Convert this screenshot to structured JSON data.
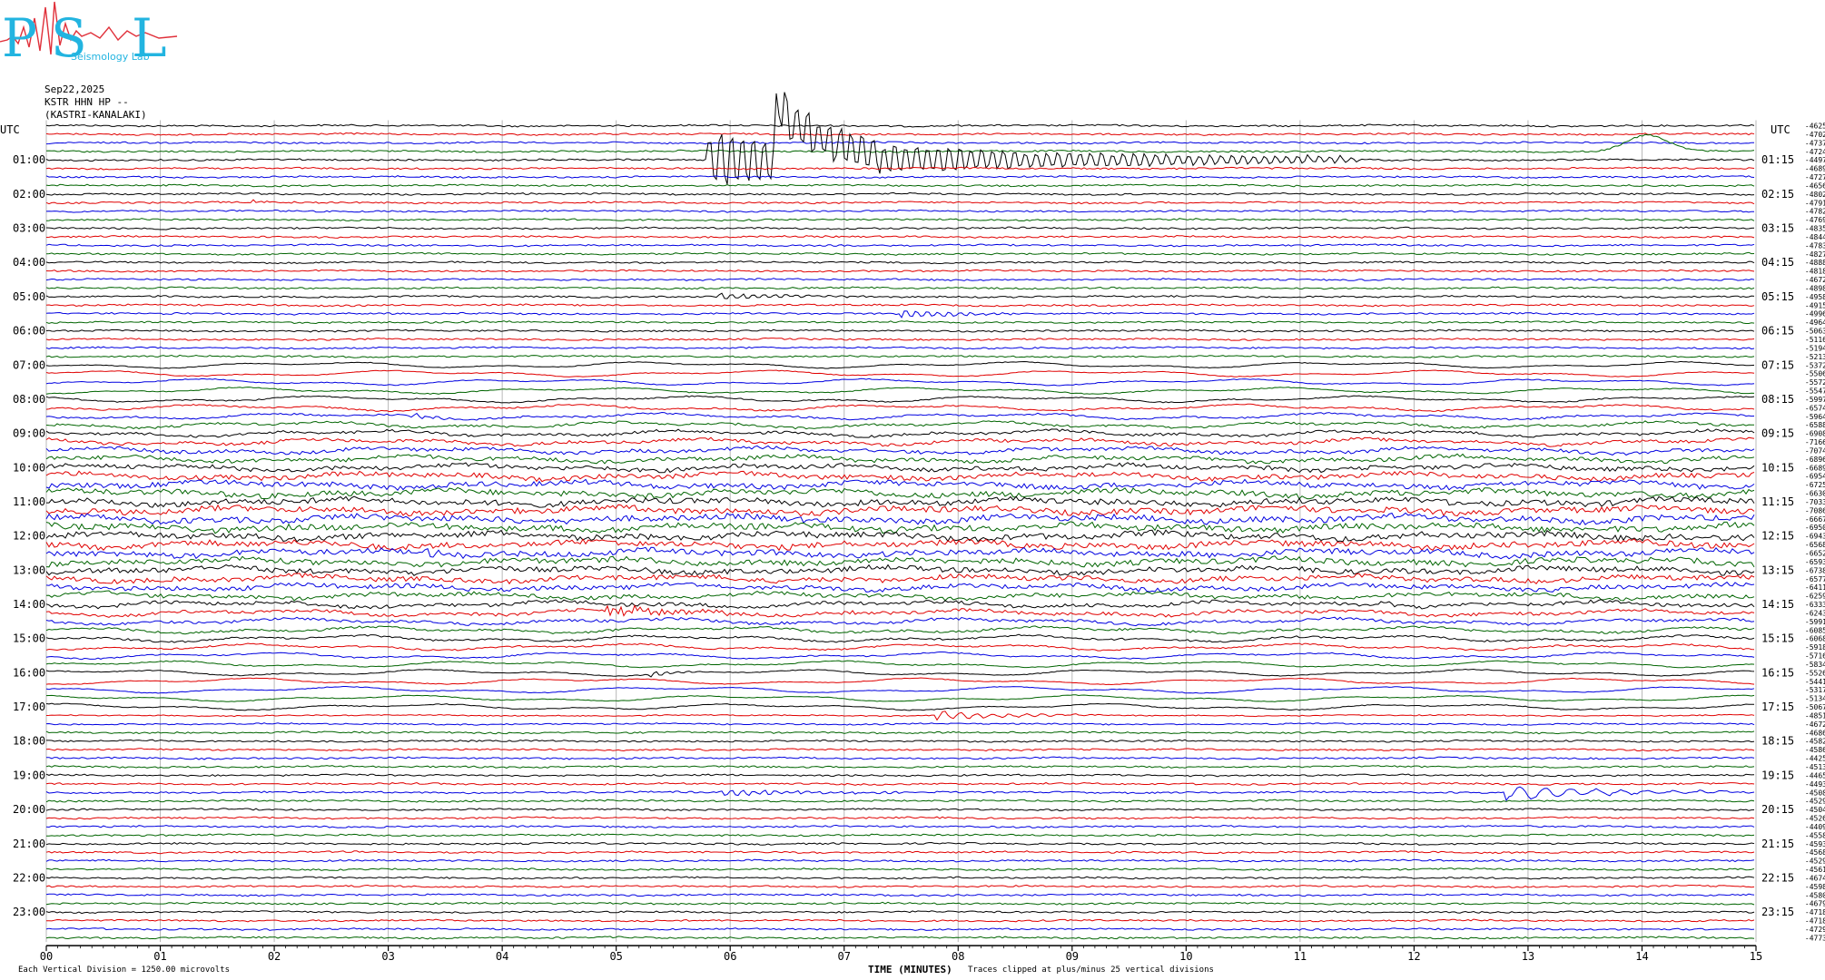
{
  "logo": {
    "letters": "PSL",
    "small_text": "Seismology Lab",
    "colors": {
      "blue": "#22b4e0",
      "red": "#e0303a"
    }
  },
  "header": {
    "date": "Sep22,2025",
    "station": "KSTR HHN HP --",
    "location": "(KASTRI-KANALAKI)"
  },
  "utc_label": "UTC",
  "left_hours": [
    "01:00",
    "02:00",
    "03:00",
    "04:00",
    "05:00",
    "06:00",
    "07:00",
    "08:00",
    "09:00",
    "10:00",
    "11:00",
    "12:00",
    "13:00",
    "14:00",
    "15:00",
    "16:00",
    "17:00",
    "18:00",
    "19:00",
    "20:00",
    "21:00",
    "22:00",
    "23:00"
  ],
  "right_hours": [
    "01:15",
    "02:15",
    "03:15",
    "04:15",
    "05:15",
    "06:15",
    "07:15",
    "08:15",
    "09:15",
    "10:15",
    "11:15",
    "12:15",
    "13:15",
    "14:15",
    "15:15",
    "16:15",
    "17:15",
    "18:15",
    "19:15",
    "20:15",
    "21:15",
    "22:15",
    "23:15"
  ],
  "x_ticks": [
    "00",
    "01",
    "02",
    "03",
    "04",
    "05",
    "06",
    "07",
    "08",
    "09",
    "10",
    "11",
    "12",
    "13",
    "14",
    "15"
  ],
  "x_axis_label": "TIME (MINUTES)",
  "footer_left": "Each Vertical Division = 1250.00 microvolts",
  "footer_clip": "Traces clipped at plus/minus 25 vertical divisions",
  "chart_data": {
    "type": "line",
    "xlabel": "TIME (MINUTES)",
    "xlim": [
      0,
      15
    ],
    "trace_colors": [
      "#000000",
      "#e00000",
      "#0000e0",
      "#006400"
    ],
    "offsets": [
      -4625,
      -4702,
      -4737,
      -4724,
      -4497,
      -4689,
      -4727,
      -4656,
      -4802,
      -4791,
      -4782,
      -4769,
      -4835,
      -4844,
      -4783,
      -4827,
      -4888,
      -4818,
      -4672,
      -4898,
      -4958,
      -4915,
      -4996,
      -4964,
      -5063,
      -5116,
      -5194,
      -5213,
      -5372,
      -5506,
      -5572,
      -5547,
      -5997,
      -6574,
      -5964,
      -6588,
      -6908,
      -7166,
      -7074,
      -6896,
      -6689,
      -6954,
      -6725,
      -6630,
      -7033,
      -7086,
      -6667,
      -6950,
      -6943,
      -6568,
      -6652,
      -6593,
      -6738,
      -6577,
      -6411,
      -6259,
      -6333,
      -6243,
      -5991,
      -6085,
      -6068,
      -5918,
      -5716,
      -5834,
      -5526,
      -5441,
      -5317,
      -5134,
      -5067,
      -4851,
      -4672,
      -4686,
      -4582,
      -4586,
      -4425,
      -4513,
      -4465,
      -4493,
      -4508,
      -4529,
      -4504,
      -4526,
      -4409,
      -4558,
      -4593,
      -4568,
      -4529,
      -4561,
      -4674,
      -4598,
      -4580,
      -4679,
      -4718,
      -4718,
      -4729,
      -4773
    ]
  }
}
